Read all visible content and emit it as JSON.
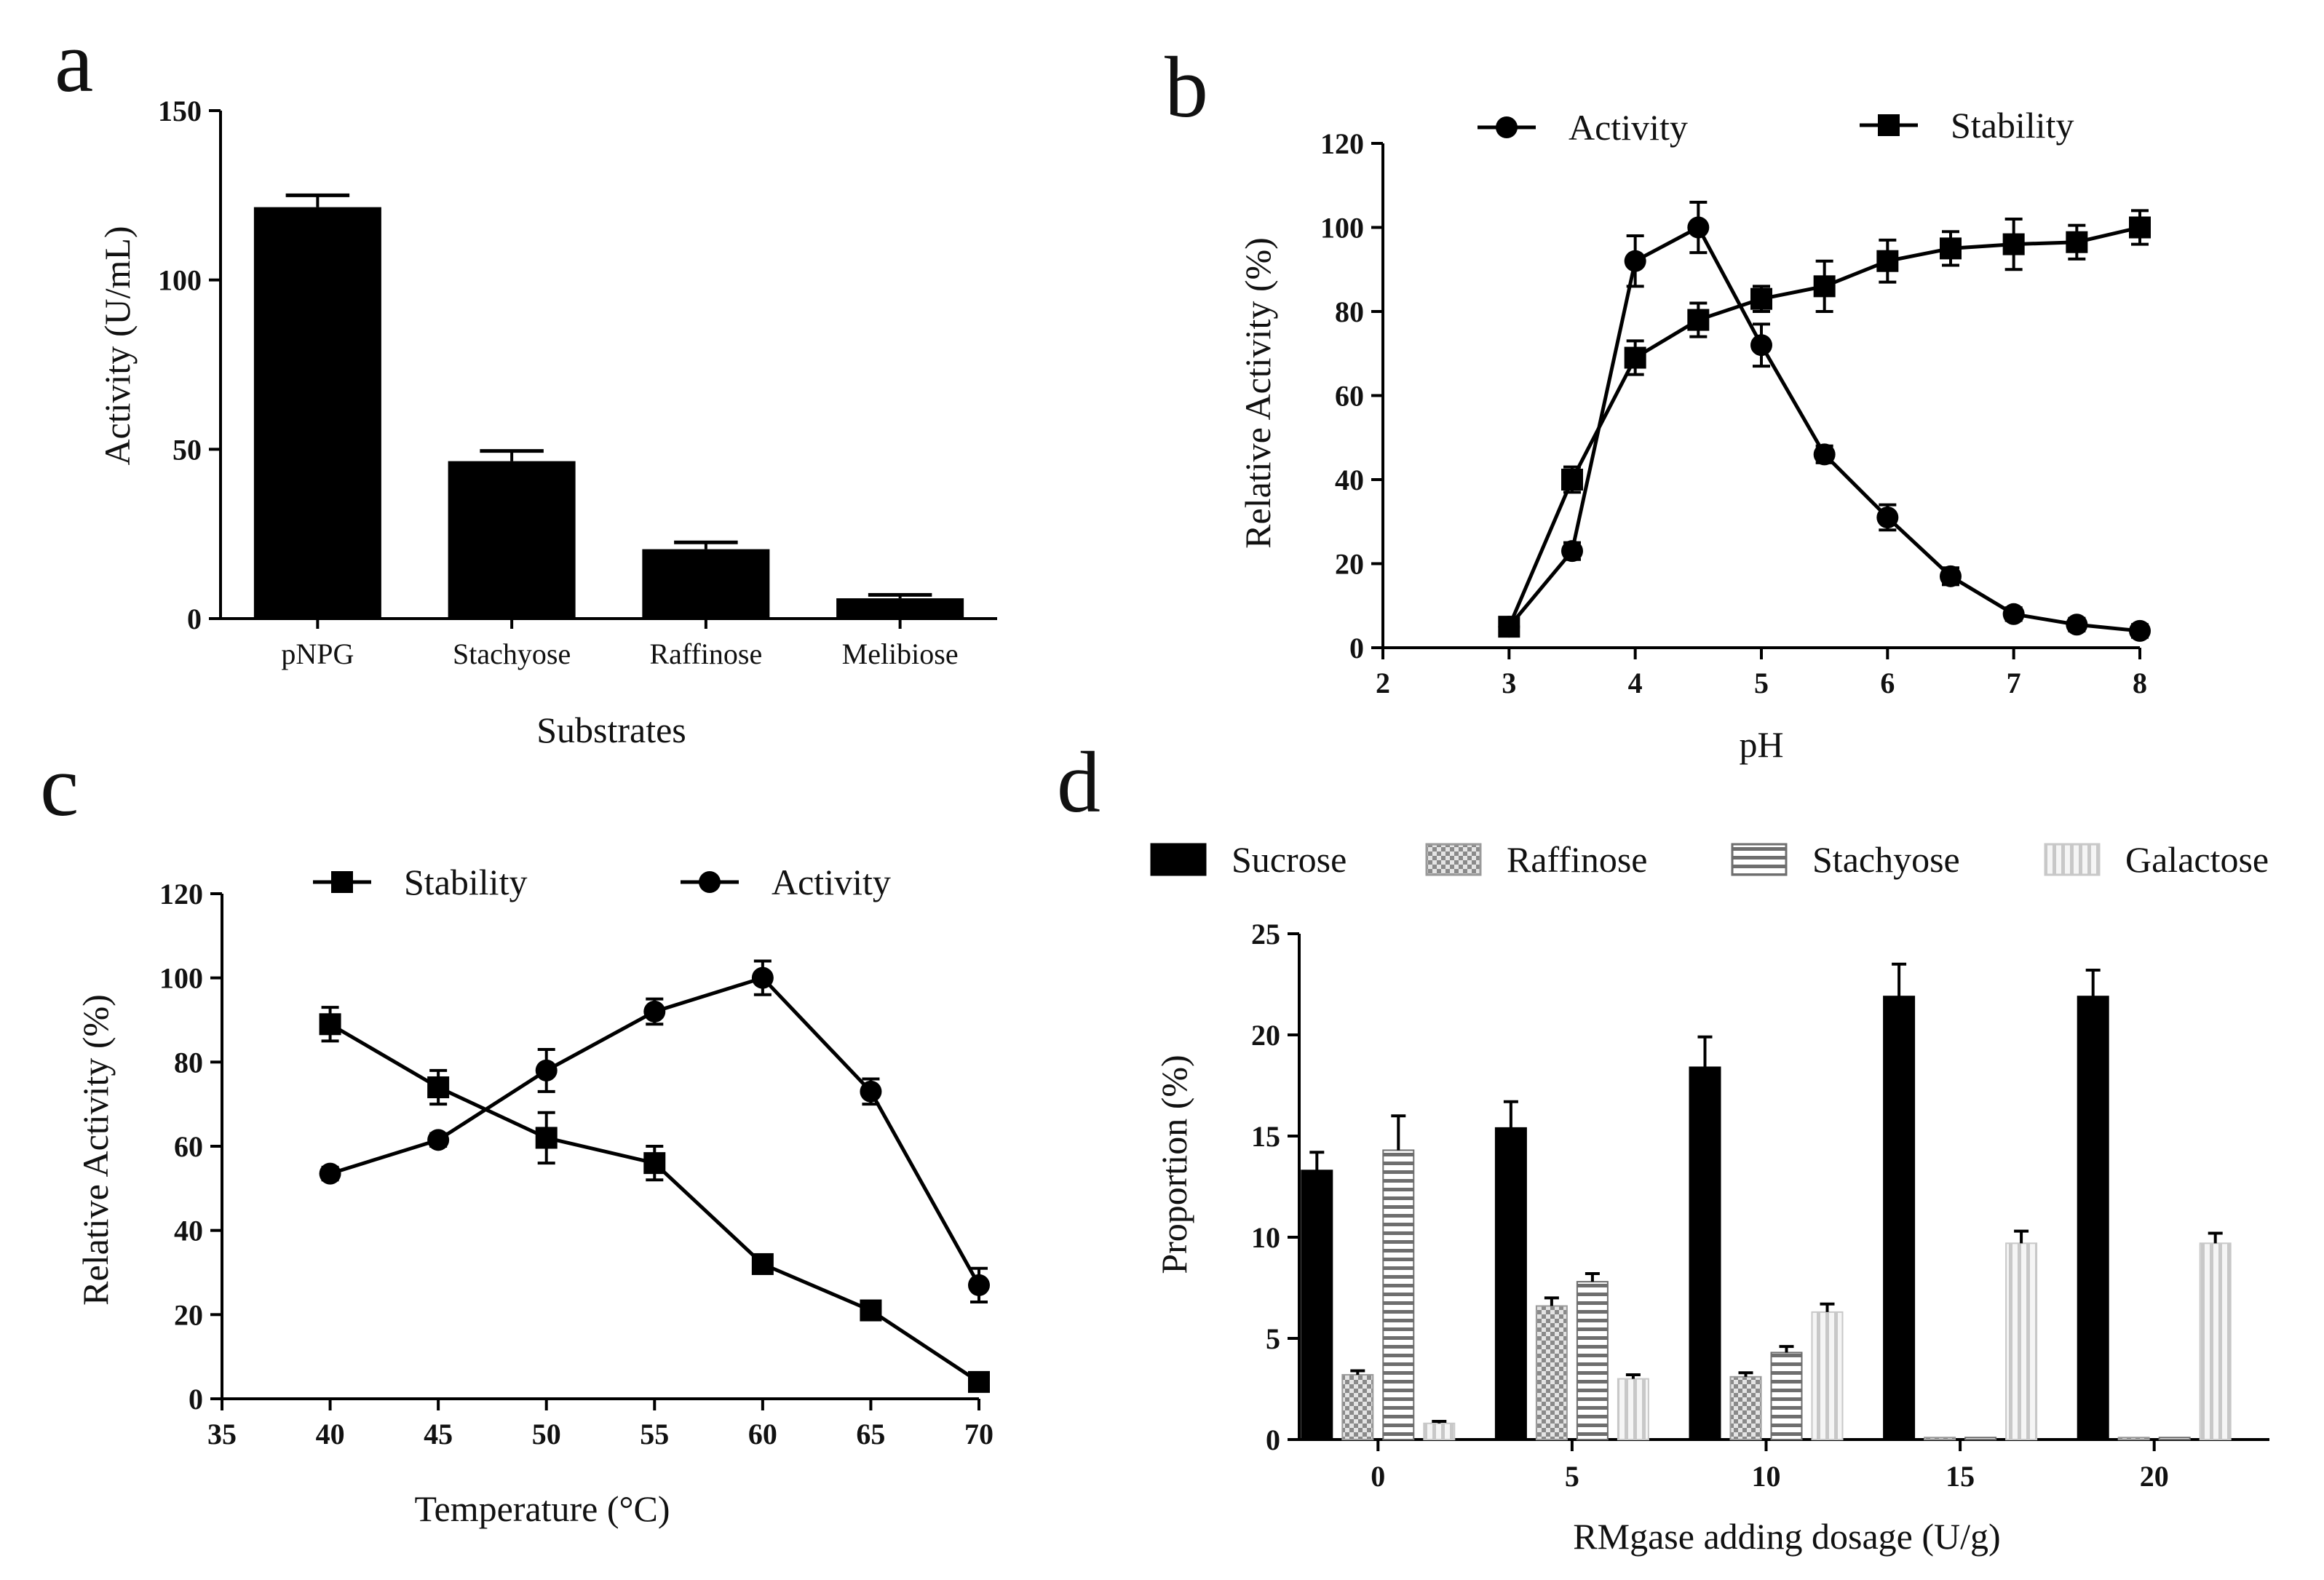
{
  "chart_data": [
    {
      "panel": "a",
      "type": "bar",
      "xlabel": "Substrates",
      "ylabel": "Activity (U/mL)",
      "ylim": [
        0,
        150
      ],
      "yticks": [
        0,
        50,
        100,
        150
      ],
      "categories": [
        "pNPG",
        "Stachyose",
        "Raffinose",
        "Melibiose"
      ],
      "values": [
        121.5,
        46.5,
        20.5,
        6.0
      ],
      "errors": [
        3.5,
        3.0,
        2.0,
        1.0
      ],
      "color": "#000000"
    },
    {
      "panel": "b",
      "type": "line",
      "xlabel": "pH",
      "ylabel": "Relative Activity (%)",
      "xlim": [
        2,
        8
      ],
      "ylim": [
        0,
        120
      ],
      "xticks": [
        2,
        3,
        4,
        5,
        6,
        7,
        8
      ],
      "yticks": [
        0,
        20,
        40,
        60,
        80,
        100,
        120
      ],
      "series": [
        {
          "name": "Activity",
          "marker": "circle",
          "x": [
            3,
            3.5,
            4,
            4.5,
            5,
            5.5,
            6,
            6.5,
            7,
            7.5,
            8
          ],
          "y": [
            5,
            23,
            92,
            100,
            72,
            46,
            31,
            17,
            8,
            5.5,
            4
          ],
          "err": [
            2,
            2,
            6,
            6,
            5,
            2,
            3,
            2,
            1.5,
            1.5,
            1.5
          ]
        },
        {
          "name": "Stability",
          "marker": "square",
          "x": [
            3,
            3.5,
            4,
            4.5,
            5,
            5.5,
            6,
            6.5,
            7,
            7.5,
            8
          ],
          "y": [
            5,
            40,
            69,
            78,
            83,
            86,
            92,
            95,
            96,
            96.5,
            100
          ],
          "err": [
            2,
            3,
            4,
            4,
            3,
            6,
            5,
            4,
            6,
            4,
            4
          ]
        }
      ]
    },
    {
      "panel": "c",
      "type": "line",
      "xlabel": "Temperature (°C)",
      "ylabel": "Relative Activity (%)",
      "xlim": [
        35,
        70
      ],
      "ylim": [
        0,
        120
      ],
      "xticks": [
        35,
        40,
        45,
        50,
        55,
        60,
        65,
        70
      ],
      "yticks": [
        0,
        20,
        40,
        60,
        80,
        100,
        120
      ],
      "series": [
        {
          "name": "Stability",
          "marker": "square",
          "x": [
            40,
            45,
            50,
            55,
            60,
            65,
            70
          ],
          "y": [
            89,
            74,
            62,
            56,
            32,
            21,
            4
          ],
          "err": [
            4,
            4,
            6,
            4,
            2,
            2,
            2
          ]
        },
        {
          "name": "Activity",
          "marker": "circle",
          "x": [
            40,
            45,
            50,
            55,
            60,
            65,
            70
          ],
          "y": [
            53.5,
            61.5,
            78,
            92,
            100,
            73,
            27
          ],
          "err": [
            1.5,
            1.5,
            5,
            3,
            4,
            3,
            4
          ]
        }
      ]
    },
    {
      "panel": "d",
      "type": "bar",
      "xlabel": "RMgase adding dosage (U/g)",
      "ylabel": "Proportion (%)",
      "ylim": [
        0,
        25
      ],
      "yticks": [
        0,
        5,
        10,
        15,
        20,
        25
      ],
      "categories": [
        "0",
        "5",
        "10",
        "15",
        "20"
      ],
      "series": [
        {
          "name": "Sucrose",
          "pattern": "solid",
          "values": [
            13.3,
            15.4,
            18.4,
            21.9,
            21.9
          ],
          "err": [
            0.9,
            1.3,
            1.5,
            1.6,
            1.3
          ]
        },
        {
          "name": "Raffinose",
          "pattern": "check",
          "values": [
            3.2,
            6.6,
            3.1,
            0.1,
            0.1
          ],
          "err": [
            0.2,
            0.4,
            0.2,
            0,
            0
          ]
        },
        {
          "name": "Stachyose",
          "pattern": "hstripe",
          "values": [
            14.3,
            7.8,
            4.3,
            0.1,
            0.1
          ],
          "err": [
            1.7,
            0.4,
            0.3,
            0,
            0
          ]
        },
        {
          "name": "Galactose",
          "pattern": "vstripe",
          "values": [
            0.8,
            3.0,
            6.3,
            9.7,
            9.7
          ],
          "err": [
            0.1,
            0.2,
            0.4,
            0.6,
            0.5
          ]
        }
      ]
    }
  ]
}
